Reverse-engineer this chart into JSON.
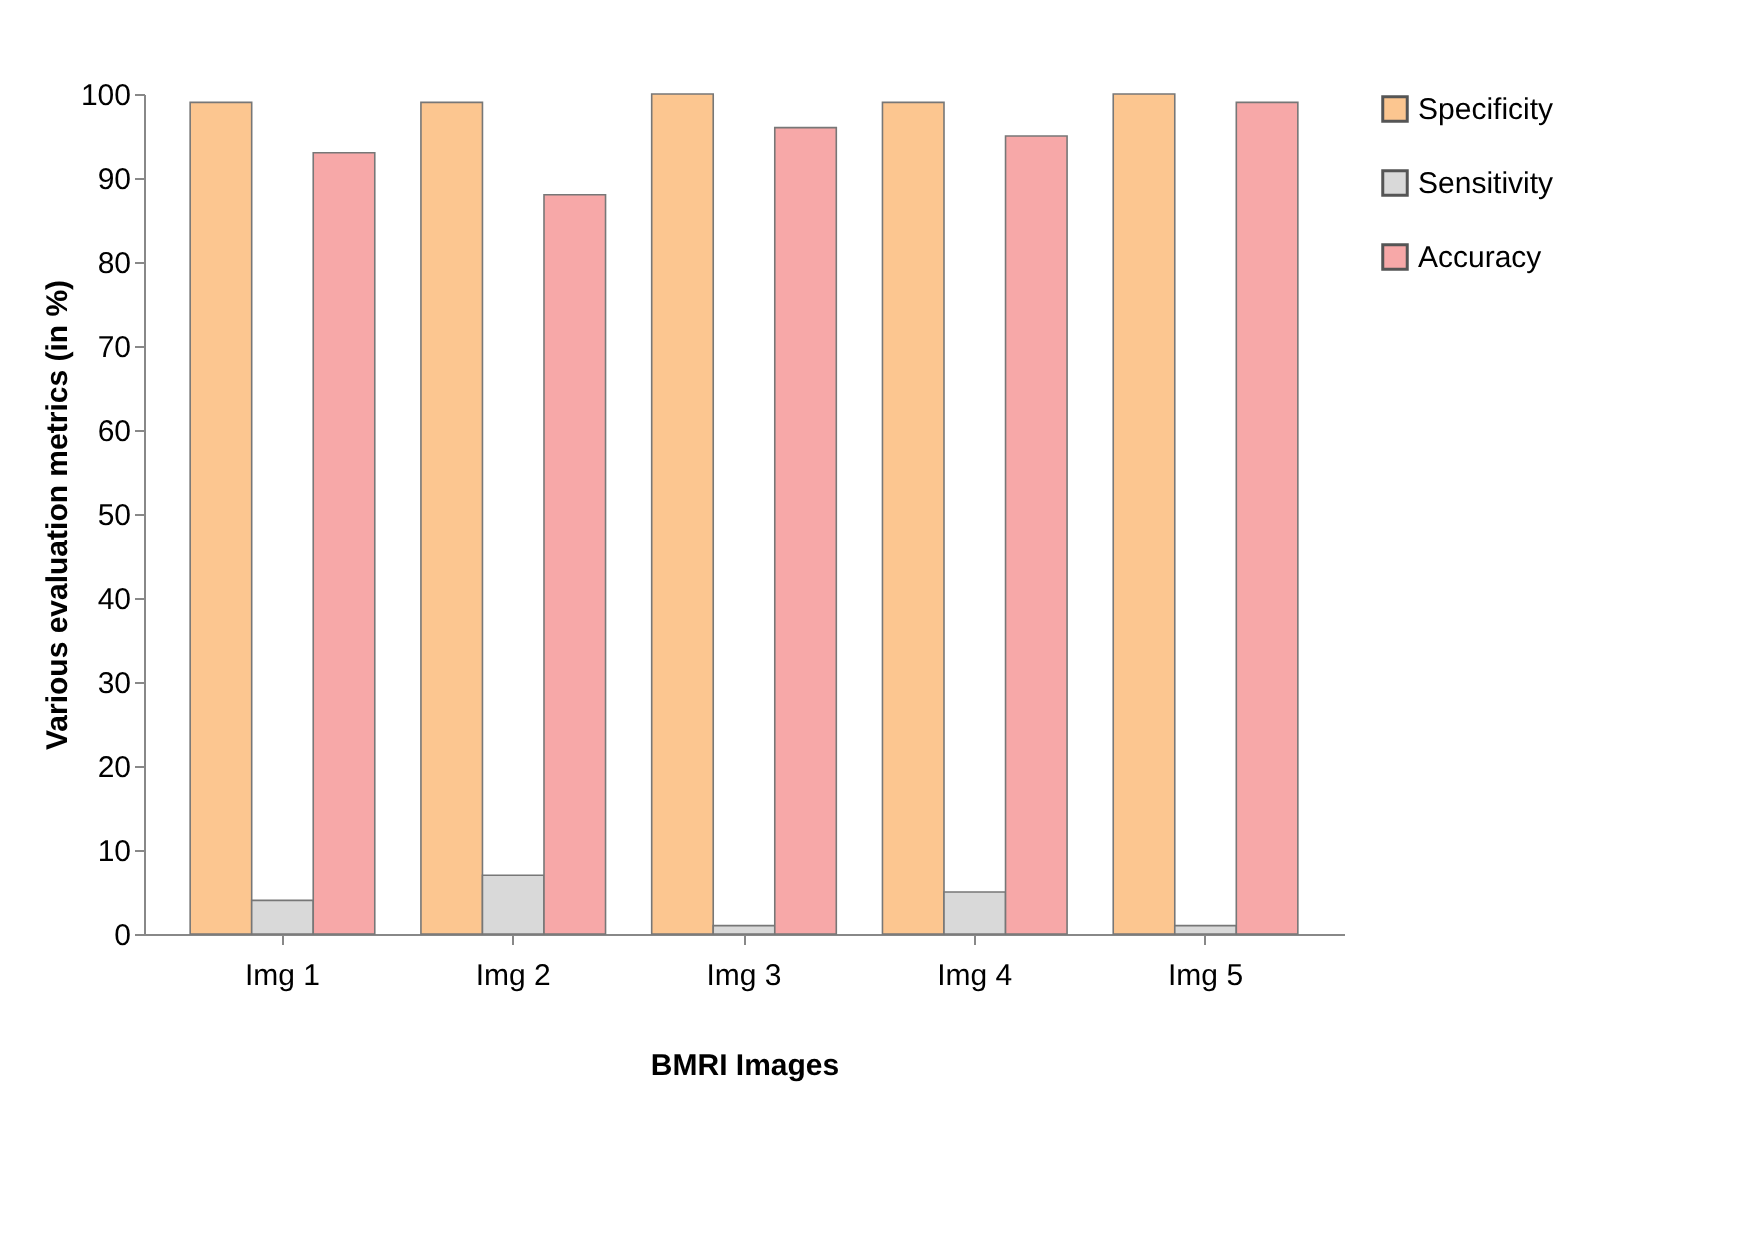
{
  "chart_data": {
    "type": "bar",
    "xlabel": "BMRI Images",
    "ylabel": "Various evaluation metrics (in %)",
    "categories": [
      "Img 1",
      "Img 2",
      "Img 3",
      "Img 4",
      "Img 5"
    ],
    "series": [
      {
        "name": "Specificity",
        "color": "#fcc690",
        "values": [
          99,
          99,
          100,
          99,
          100
        ]
      },
      {
        "name": "Sensitivity",
        "color": "#d9d9d9",
        "values": [
          4,
          7,
          1,
          5,
          1
        ]
      },
      {
        "name": "Accuracy",
        "color": "#f7a8a8",
        "values": [
          93,
          88,
          96,
          95,
          99
        ]
      }
    ],
    "ylim": [
      0,
      100
    ],
    "yticks": [
      0,
      10,
      20,
      30,
      40,
      50,
      60,
      70,
      80,
      90,
      100
    ],
    "grid": false,
    "legend": "right"
  }
}
